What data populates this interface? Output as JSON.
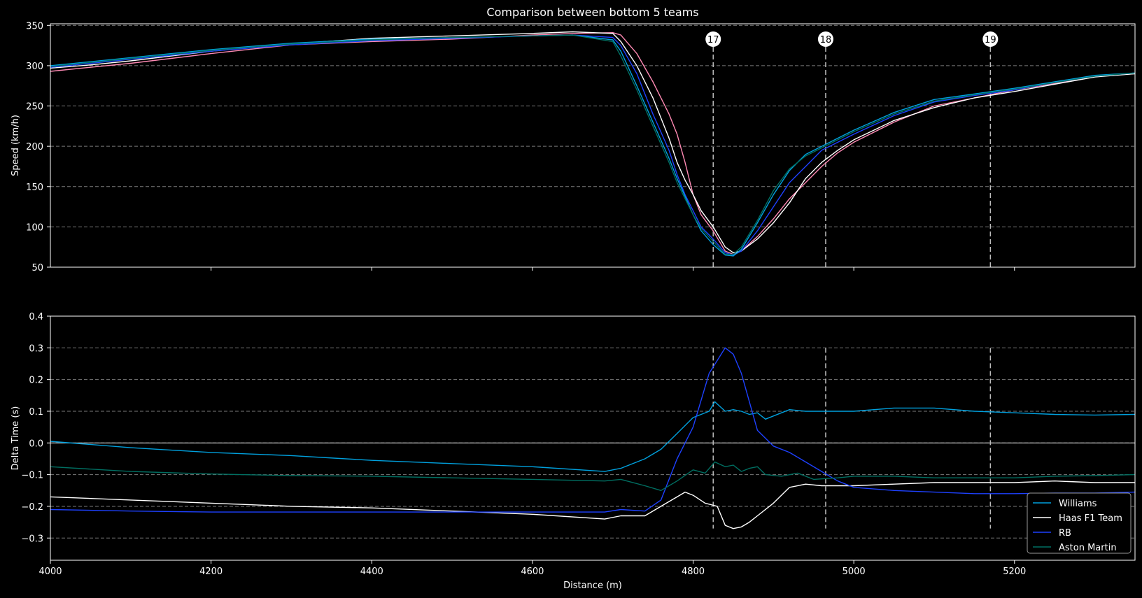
{
  "chart_data": [
    {
      "type": "line",
      "title": "Comparison between bottom 5 teams",
      "xlabel": "",
      "ylabel": "Speed (km/h)",
      "xlim": [
        4000,
        5350
      ],
      "ylim": [
        50,
        352
      ],
      "yticks": [
        50,
        100,
        150,
        200,
        250,
        300,
        350
      ],
      "xticks": [
        4200,
        4400,
        4600,
        4800,
        5000,
        5200
      ],
      "grid": true,
      "corner_markers": [
        {
          "label": "17",
          "x": 4825
        },
        {
          "label": "18",
          "x": 4965
        },
        {
          "label": "19",
          "x": 5170
        }
      ],
      "series": [
        {
          "color": "#ff8ab4",
          "x": [
            4000,
            4050,
            4100,
            4200,
            4300,
            4400,
            4500,
            4600,
            4650,
            4700,
            4710,
            4730,
            4750,
            4770,
            4780,
            4790,
            4800,
            4810,
            4825,
            4840,
            4850,
            4860,
            4880,
            4900,
            4920,
            4940,
            4960,
            4980,
            5000,
            5050,
            5100,
            5150,
            5200,
            5250,
            5300,
            5350
          ],
          "values": [
            293,
            298,
            303,
            315,
            326,
            330,
            333,
            338,
            340,
            341,
            338,
            315,
            280,
            240,
            215,
            180,
            140,
            115,
            95,
            70,
            66,
            70,
            88,
            110,
            135,
            155,
            175,
            192,
            205,
            230,
            250,
            260,
            270,
            278,
            287,
            290
          ]
        },
        {
          "color": "#ffffff",
          "x": [
            4000,
            4050,
            4100,
            4200,
            4300,
            4400,
            4500,
            4600,
            4650,
            4700,
            4710,
            4730,
            4750,
            4770,
            4780,
            4790,
            4800,
            4810,
            4825,
            4840,
            4850,
            4860,
            4880,
            4900,
            4920,
            4940,
            4960,
            4980,
            5000,
            5050,
            5100,
            5150,
            5200,
            5250,
            5300,
            5350
          ],
          "values": [
            297,
            301,
            306,
            318,
            327,
            334,
            337,
            340,
            342,
            340,
            330,
            300,
            260,
            210,
            180,
            158,
            140,
            120,
            100,
            75,
            68,
            70,
            85,
            105,
            130,
            160,
            180,
            195,
            208,
            232,
            248,
            260,
            268,
            277,
            286,
            290
          ]
        },
        {
          "color": "#1e41ff",
          "x": [
            4000,
            4050,
            4100,
            4200,
            4300,
            4400,
            4500,
            4600,
            4650,
            4700,
            4710,
            4730,
            4750,
            4770,
            4780,
            4790,
            4800,
            4810,
            4825,
            4840,
            4850,
            4860,
            4880,
            4900,
            4920,
            4940,
            4960,
            4980,
            5000,
            5050,
            5100,
            5150,
            5200,
            5250,
            5300,
            5350
          ],
          "values": [
            298,
            303,
            308,
            318,
            326,
            331,
            334,
            337,
            338,
            335,
            325,
            290,
            240,
            195,
            165,
            140,
            120,
            100,
            85,
            68,
            65,
            70,
            95,
            125,
            155,
            175,
            195,
            205,
            215,
            238,
            255,
            263,
            270,
            279,
            287,
            291
          ]
        },
        {
          "color": "#00a0dd",
          "x": [
            4000,
            4050,
            4100,
            4200,
            4300,
            4400,
            4500,
            4600,
            4650,
            4700,
            4710,
            4730,
            4750,
            4770,
            4780,
            4790,
            4800,
            4810,
            4825,
            4840,
            4850,
            4860,
            4880,
            4900,
            4920,
            4940,
            4960,
            4980,
            5000,
            5050,
            5100,
            5150,
            5200,
            5250,
            5300,
            5350
          ],
          "values": [
            300,
            305,
            310,
            320,
            328,
            333,
            335,
            337,
            338,
            332,
            318,
            275,
            230,
            185,
            160,
            138,
            115,
            95,
            78,
            65,
            64,
            72,
            105,
            140,
            170,
            190,
            200,
            210,
            220,
            242,
            258,
            265,
            272,
            280,
            288,
            291
          ]
        },
        {
          "color": "#006f62",
          "x": [
            4000,
            4050,
            4100,
            4200,
            4300,
            4400,
            4500,
            4600,
            4650,
            4700,
            4710,
            4730,
            4750,
            4770,
            4780,
            4790,
            4800,
            4810,
            4825,
            4840,
            4850,
            4860,
            4880,
            4900,
            4920,
            4940,
            4960,
            4980,
            5000,
            5050,
            5100,
            5150,
            5200,
            5250,
            5300,
            5350
          ],
          "values": [
            299,
            304,
            309,
            319,
            327,
            332,
            335,
            337,
            338,
            330,
            312,
            270,
            225,
            180,
            155,
            135,
            115,
            98,
            82,
            66,
            66,
            75,
            108,
            145,
            172,
            188,
            198,
            208,
            218,
            240,
            256,
            264,
            271,
            279,
            287,
            291
          ]
        }
      ]
    },
    {
      "type": "line",
      "title": "",
      "xlabel": "Distance (m)",
      "ylabel": "Delta Time (s)",
      "xlim": [
        4000,
        5350
      ],
      "ylim": [
        -0.37,
        0.4
      ],
      "yticks": [
        -0.3,
        -0.2,
        -0.1,
        0.0,
        0.1,
        0.2,
        0.3,
        0.4
      ],
      "ytick_labels": [
        "−0.3",
        "−0.2",
        "−0.1",
        "0.0",
        "0.1",
        "0.2",
        "0.3",
        "0.4"
      ],
      "xticks": [
        4000,
        4200,
        4400,
        4600,
        4800,
        5000,
        5200
      ],
      "grid": true,
      "legend_location": "lower-right",
      "corner_lines_x": [
        4825,
        4965,
        5170
      ],
      "series": [
        {
          "name": "Williams",
          "color": "#00a0dd",
          "x": [
            4000,
            4100,
            4200,
            4300,
            4400,
            4500,
            4600,
            4690,
            4710,
            4740,
            4760,
            4780,
            4800,
            4820,
            4827,
            4840,
            4850,
            4860,
            4870,
            4880,
            4890,
            4910,
            4920,
            4940,
            4960,
            5000,
            5050,
            5100,
            5150,
            5200,
            5250,
            5300,
            5350
          ],
          "values": [
            0.005,
            -0.015,
            -0.03,
            -0.04,
            -0.055,
            -0.065,
            -0.075,
            -0.09,
            -0.08,
            -0.05,
            -0.02,
            0.03,
            0.08,
            0.1,
            0.13,
            0.1,
            0.105,
            0.1,
            0.09,
            0.095,
            0.075,
            0.095,
            0.105,
            0.1,
            0.1,
            0.1,
            0.11,
            0.11,
            0.1,
            0.095,
            0.09,
            0.088,
            0.09
          ]
        },
        {
          "name": "Haas F1 Team",
          "color": "#ffffff",
          "x": [
            4000,
            4100,
            4200,
            4300,
            4400,
            4500,
            4600,
            4690,
            4710,
            4740,
            4760,
            4780,
            4790,
            4800,
            4815,
            4830,
            4840,
            4850,
            4860,
            4870,
            4880,
            4900,
            4920,
            4940,
            4960,
            5000,
            5050,
            5100,
            5150,
            5200,
            5250,
            5300,
            5350
          ],
          "values": [
            -0.17,
            -0.18,
            -0.19,
            -0.2,
            -0.205,
            -0.215,
            -0.225,
            -0.24,
            -0.23,
            -0.23,
            -0.2,
            -0.17,
            -0.155,
            -0.165,
            -0.19,
            -0.2,
            -0.26,
            -0.27,
            -0.265,
            -0.25,
            -0.23,
            -0.19,
            -0.14,
            -0.13,
            -0.135,
            -0.135,
            -0.13,
            -0.125,
            -0.125,
            -0.125,
            -0.12,
            -0.125,
            -0.125
          ]
        },
        {
          "name": "RB",
          "color": "#1e41ff",
          "x": [
            4000,
            4100,
            4200,
            4300,
            4400,
            4500,
            4600,
            4690,
            4710,
            4740,
            4760,
            4780,
            4800,
            4820,
            4840,
            4850,
            4860,
            4880,
            4900,
            4920,
            4940,
            4960,
            4980,
            5000,
            5050,
            5100,
            5150,
            5200,
            5250,
            5300,
            5350
          ],
          "values": [
            -0.21,
            -0.215,
            -0.218,
            -0.218,
            -0.218,
            -0.218,
            -0.218,
            -0.218,
            -0.21,
            -0.215,
            -0.18,
            -0.05,
            0.05,
            0.22,
            0.3,
            0.28,
            0.22,
            0.04,
            -0.01,
            -0.03,
            -0.06,
            -0.09,
            -0.12,
            -0.14,
            -0.15,
            -0.155,
            -0.16,
            -0.16,
            -0.158,
            -0.158,
            -0.155
          ]
        },
        {
          "name": "Aston Martin",
          "color": "#006f62",
          "x": [
            4000,
            4100,
            4200,
            4300,
            4400,
            4500,
            4600,
            4690,
            4710,
            4740,
            4760,
            4780,
            4800,
            4815,
            4827,
            4840,
            4850,
            4860,
            4870,
            4880,
            4890,
            4910,
            4930,
            4950,
            4980,
            5000,
            5050,
            5100,
            5150,
            5200,
            5250,
            5300,
            5350
          ],
          "values": [
            -0.075,
            -0.09,
            -0.098,
            -0.103,
            -0.105,
            -0.11,
            -0.115,
            -0.12,
            -0.115,
            -0.135,
            -0.15,
            -0.12,
            -0.085,
            -0.095,
            -0.06,
            -0.075,
            -0.07,
            -0.09,
            -0.08,
            -0.075,
            -0.1,
            -0.105,
            -0.095,
            -0.115,
            -0.11,
            -0.105,
            -0.105,
            -0.11,
            -0.11,
            -0.11,
            -0.105,
            -0.103,
            -0.1
          ]
        }
      ]
    }
  ]
}
